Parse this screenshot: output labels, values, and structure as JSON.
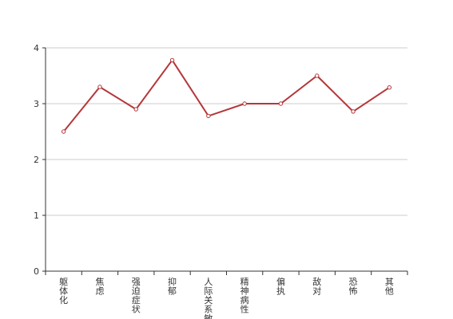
{
  "chart_data": {
    "type": "line",
    "categories": [
      "躯体化",
      "焦虑",
      "强迫症状",
      "抑郁",
      "人际关系敏感",
      "精神病性",
      "偏执",
      "敌对",
      "恐怖",
      "其他"
    ],
    "values": [
      2.5,
      3.3,
      2.9,
      3.78,
      2.78,
      3.0,
      3.0,
      3.5,
      2.86,
      3.29
    ],
    "color": "#b5373a",
    "ylim": [
      0,
      4
    ],
    "yticks": [
      0,
      1,
      2,
      3,
      4
    ],
    "grid": true
  }
}
